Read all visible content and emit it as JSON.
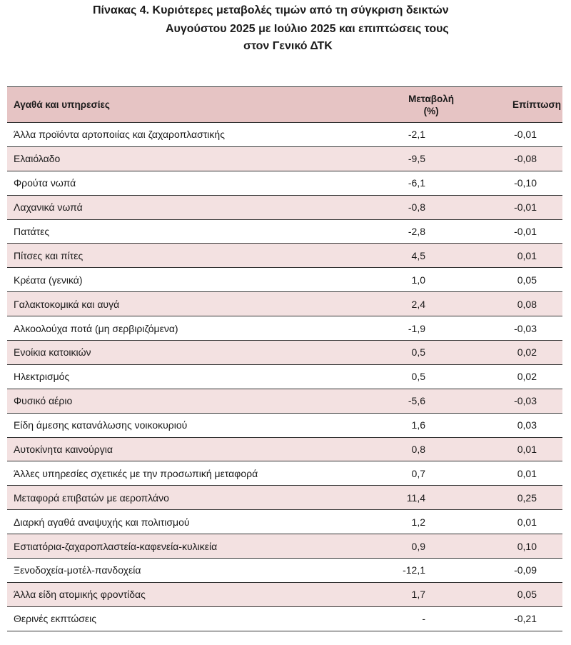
{
  "title": {
    "line1": "Πίνακας  4. Κυριότερες μεταβολές τιμών από τη σύγκριση δεικτών",
    "line2": "Αυγούστου 2025 με Ιούλιο 2025 και επιπτώσεις τους",
    "line3": "στον Γενικό ΔΤΚ"
  },
  "table": {
    "headers": {
      "item": "Αγαθά και υπηρεσίες",
      "change_line1": "Μεταβολή",
      "change_line2": "(%)",
      "impact": "Επίπτωση"
    },
    "rows": [
      {
        "item": "Άλλα προϊόντα αρτοποιίας και ζαχαροπλαστικής",
        "change": "-2,1",
        "impact": "-0,01"
      },
      {
        "item": "Ελαιόλαδο",
        "change": "-9,5",
        "impact": "-0,08"
      },
      {
        "item": "Φρούτα νωπά",
        "change": "-6,1",
        "impact": "-0,10"
      },
      {
        "item": "Λαχανικά νωπά",
        "change": "-0,8",
        "impact": "-0,01"
      },
      {
        "item": "Πατάτες",
        "change": "-2,8",
        "impact": "-0,01"
      },
      {
        "item": "Πίτσες και πίτες",
        "change": "4,5",
        "impact": "0,01"
      },
      {
        "item": "Κρέατα (γενικά)",
        "change": "1,0",
        "impact": "0,05"
      },
      {
        "item": "Γαλακτοκομικά και αυγά",
        "change": "2,4",
        "impact": "0,08"
      },
      {
        "item": "Αλκοολούχα ποτά (μη σερβιριζόμενα)",
        "change": "-1,9",
        "impact": "-0,03"
      },
      {
        "item": "Ενοίκια κατοικιών",
        "change": "0,5",
        "impact": "0,02"
      },
      {
        "item": "Ηλεκτρισμός",
        "change": "0,5",
        "impact": "0,02"
      },
      {
        "item": "Φυσικό αέριο",
        "change": "-5,6",
        "impact": "-0,03"
      },
      {
        "item": "Είδη άμεσης κατανάλωσης νοικοκυριού",
        "change": "1,6",
        "impact": "0,03"
      },
      {
        "item": "Αυτοκίνητα καινούργια",
        "change": "0,8",
        "impact": "0,01"
      },
      {
        "item": "Άλλες υπηρεσίες σχετικές με την προσωπική μεταφορά",
        "change": "0,7",
        "impact": "0,01"
      },
      {
        "item": "Μεταφορά επιβατών με αεροπλάνο",
        "change": "11,4",
        "impact": "0,25"
      },
      {
        "item": "Διαρκή αγαθά αναψυχής και πολιτισμού",
        "change": "1,2",
        "impact": "0,01"
      },
      {
        "item": "Εστιατόρια-ζαχαροπλαστεία-καφενεία-κυλικεία",
        "change": "0,9",
        "impact": "0,10"
      },
      {
        "item": "Ξενοδοχεία-μοτέλ-πανδοχεία",
        "change": "-12,1",
        "impact": "-0,09"
      },
      {
        "item": "Άλλα είδη ατομικής φροντίδας",
        "change": "1,7",
        "impact": "0,05"
      },
      {
        "item": "Θερινές εκπτώσεις",
        "change": "-",
        "impact": "-0,21"
      }
    ]
  },
  "colors": {
    "header_bg": "#e6c4c4",
    "stripe_bg": "#f3e1e1",
    "rule": "#333333"
  }
}
